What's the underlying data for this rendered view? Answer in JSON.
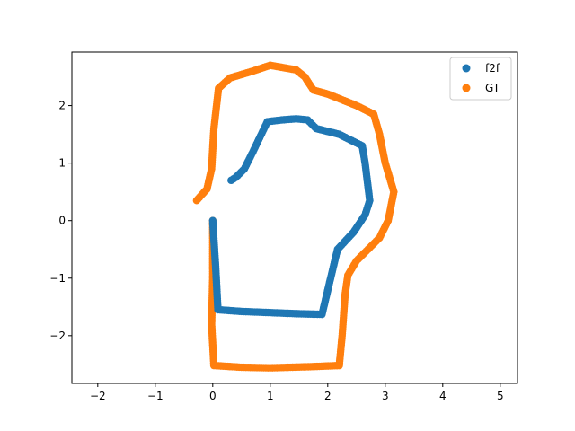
{
  "chart_data": {
    "type": "scatter",
    "title": "",
    "xlabel": "",
    "ylabel": "",
    "xlim": [
      -2.45,
      5.3
    ],
    "ylim": [
      -2.83,
      2.93
    ],
    "grid": false,
    "legend_placement": "top-right",
    "x_ticks": [
      -2,
      -1,
      0,
      1,
      2,
      3,
      4,
      5
    ],
    "y_ticks": [
      -2,
      -1,
      0,
      1,
      2
    ],
    "x_tick_labels": [
      "−2",
      "−1",
      "0",
      "1",
      "2",
      "3",
      "4",
      "5"
    ],
    "y_tick_labels": [
      "−2",
      "−1",
      "0",
      "1",
      "2"
    ],
    "series": [
      {
        "name": "f2f",
        "color": "#1f77b4",
        "points": [
          [
            0.0,
            0.0
          ],
          [
            0.05,
            -0.8
          ],
          [
            0.09,
            -1.55
          ],
          [
            0.5,
            -1.58
          ],
          [
            1.0,
            -1.6
          ],
          [
            1.5,
            -1.62
          ],
          [
            1.9,
            -1.63
          ],
          [
            2.05,
            -1.0
          ],
          [
            2.17,
            -0.5
          ],
          [
            2.45,
            -0.2
          ],
          [
            2.65,
            0.1
          ],
          [
            2.73,
            0.35
          ],
          [
            2.65,
            1.0
          ],
          [
            2.6,
            1.3
          ],
          [
            2.2,
            1.5
          ],
          [
            1.8,
            1.6
          ],
          [
            1.65,
            1.75
          ],
          [
            1.45,
            1.77
          ],
          [
            1.2,
            1.75
          ],
          [
            0.95,
            1.72
          ],
          [
            0.7,
            1.2
          ],
          [
            0.55,
            0.9
          ],
          [
            0.4,
            0.75
          ],
          [
            0.32,
            0.7
          ]
        ]
      },
      {
        "name": "GT",
        "color": "#ff7f0e",
        "points": [
          [
            -0.28,
            0.35
          ],
          [
            -0.1,
            0.55
          ],
          [
            -0.02,
            0.9
          ],
          [
            0.02,
            1.6
          ],
          [
            0.1,
            2.3
          ],
          [
            0.3,
            2.48
          ],
          [
            0.7,
            2.6
          ],
          [
            1.0,
            2.7
          ],
          [
            1.45,
            2.62
          ],
          [
            1.6,
            2.5
          ],
          [
            1.75,
            2.27
          ],
          [
            2.0,
            2.2
          ],
          [
            2.5,
            2.0
          ],
          [
            2.8,
            1.85
          ],
          [
            2.9,
            1.5
          ],
          [
            3.0,
            1.0
          ],
          [
            3.15,
            0.5
          ],
          [
            3.05,
            0.0
          ],
          [
            2.9,
            -0.3
          ],
          [
            2.5,
            -0.7
          ],
          [
            2.35,
            -0.95
          ],
          [
            2.3,
            -1.3
          ],
          [
            2.25,
            -2.0
          ],
          [
            2.2,
            -2.52
          ],
          [
            1.7,
            -2.54
          ],
          [
            1.0,
            -2.56
          ],
          [
            0.5,
            -2.55
          ],
          [
            0.02,
            -2.52
          ],
          [
            -0.02,
            -1.8
          ],
          [
            0.0,
            -1.0
          ],
          [
            0.0,
            0.0
          ]
        ]
      }
    ]
  }
}
